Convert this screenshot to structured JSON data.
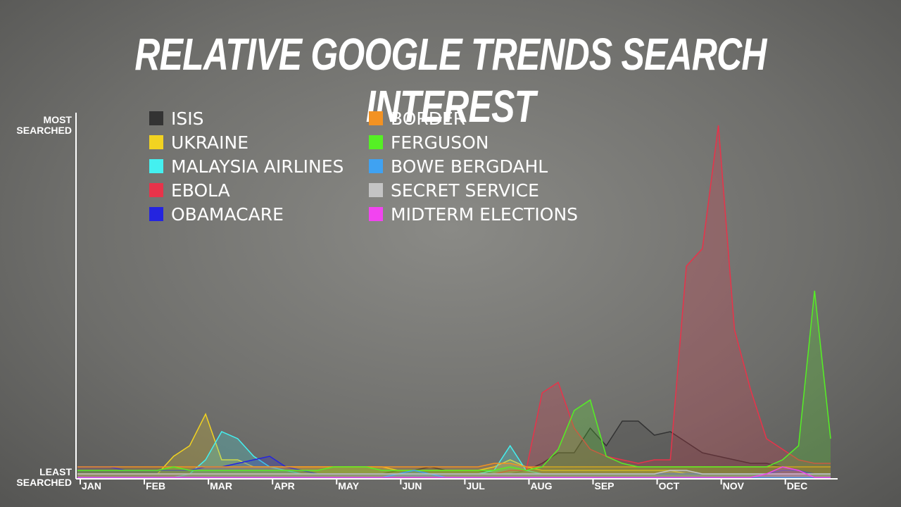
{
  "chart_data": {
    "type": "area",
    "title": "RELATIVE GOOGLE TRENDS SEARCH INTEREST",
    "categories": [
      "JAN",
      null,
      null,
      null,
      "FEB",
      null,
      null,
      null,
      "MAR",
      null,
      null,
      null,
      "APR",
      null,
      null,
      null,
      "MAY",
      null,
      null,
      null,
      "JUN",
      null,
      null,
      null,
      "JUL",
      null,
      null,
      null,
      "AUG",
      null,
      null,
      null,
      "SEP",
      null,
      null,
      null,
      "OCT",
      null,
      null,
      null,
      "NOV",
      null,
      null,
      null,
      "DEC",
      null,
      null,
      null
    ],
    "ylim": [
      0,
      100
    ],
    "yticks": [
      {
        "value": 0,
        "label": "LEAST SEARCHED"
      },
      {
        "value": 100,
        "label": "MOST SEARCHED"
      }
    ],
    "series": [
      {
        "name": "ISIS",
        "color": "#333333",
        "values": [
          1,
          1,
          1,
          1,
          1,
          1,
          1,
          1,
          1,
          1,
          1,
          1,
          1,
          1,
          1,
          1,
          1,
          1,
          1,
          1,
          2,
          2,
          3,
          2,
          2,
          2,
          1,
          1,
          2,
          4,
          7,
          7,
          14,
          9,
          16,
          16,
          12,
          13,
          10,
          7,
          6,
          5,
          4,
          4,
          3,
          3,
          3,
          3
        ]
      },
      {
        "name": "UKRAINE",
        "color": "#f2d321",
        "values": [
          1,
          1,
          1,
          1,
          1,
          1,
          6,
          9,
          18,
          5,
          5,
          3,
          3,
          3,
          3,
          3,
          3,
          3,
          3,
          3,
          2,
          2,
          2,
          2,
          2,
          2,
          3,
          5,
          3,
          2,
          2,
          2,
          2,
          2,
          2,
          2,
          2,
          2,
          1,
          1,
          1,
          1,
          1,
          1,
          1,
          1,
          1,
          1
        ]
      },
      {
        "name": "MALAYSIA AIRLINES",
        "color": "#44f0f0",
        "values": [
          0,
          0,
          0,
          0,
          0,
          0,
          0,
          1,
          5,
          13,
          11,
          6,
          3,
          2,
          1,
          1,
          1,
          1,
          1,
          1,
          1,
          1,
          1,
          1,
          1,
          1,
          2,
          9,
          2,
          1,
          1,
          1,
          1,
          1,
          1,
          1,
          1,
          1,
          1,
          1,
          1,
          1,
          1,
          1,
          1,
          1,
          1,
          1
        ]
      },
      {
        "name": "EBOLA",
        "color": "#e8334a",
        "values": [
          1,
          1,
          1,
          1,
          1,
          1,
          1,
          1,
          1,
          1,
          1,
          1,
          1,
          1,
          1,
          1,
          1,
          1,
          1,
          1,
          1,
          1,
          1,
          1,
          1,
          1,
          1,
          2,
          2,
          24,
          27,
          14,
          8,
          6,
          5,
          4,
          5,
          5,
          60,
          65,
          100,
          42,
          25,
          11,
          8,
          5,
          4,
          4
        ]
      },
      {
        "name": "OBAMACARE",
        "color": "#2424e0",
        "values": [
          3,
          3,
          3,
          2,
          2,
          2,
          2,
          2,
          3,
          3,
          4,
          5,
          6,
          3,
          2,
          1,
          1,
          1,
          1,
          1,
          1,
          1,
          1,
          1,
          1,
          1,
          1,
          1,
          1,
          1,
          1,
          1,
          1,
          1,
          1,
          1,
          1,
          1,
          1,
          1,
          1,
          1,
          1,
          1,
          2,
          2,
          1,
          1
        ]
      },
      {
        "name": "BORDER",
        "color": "#f39222",
        "values": [
          3,
          3,
          3,
          3,
          3,
          3,
          3,
          3,
          3,
          3,
          3,
          3,
          3,
          3,
          3,
          3,
          3,
          3,
          3,
          3,
          3,
          3,
          3,
          3,
          3,
          3,
          4,
          4,
          3,
          3,
          3,
          3,
          3,
          3,
          3,
          3,
          3,
          3,
          3,
          3,
          3,
          3,
          3,
          3,
          3,
          3,
          3,
          3
        ]
      },
      {
        "name": "FERGUSON",
        "color": "#55f024",
        "values": [
          2,
          2,
          2,
          2,
          2,
          2,
          3,
          2,
          2,
          2,
          2,
          2,
          2,
          2,
          2,
          2,
          3,
          3,
          3,
          2,
          2,
          2,
          2,
          2,
          2,
          2,
          2,
          3,
          2,
          3,
          8,
          19,
          22,
          6,
          4,
          3,
          3,
          3,
          3,
          3,
          3,
          3,
          3,
          3,
          5,
          9,
          53,
          11
        ]
      },
      {
        "name": "BOWE BERGDAHL",
        "color": "#3fa2f2",
        "values": [
          0,
          0,
          0,
          0,
          0,
          0,
          0,
          0,
          0,
          0,
          0,
          0,
          0,
          0,
          0,
          0,
          0,
          0,
          0,
          0,
          1,
          2,
          1,
          0,
          0,
          0,
          0,
          0,
          0,
          0,
          0,
          0,
          0,
          0,
          0,
          0,
          0,
          0,
          0,
          0,
          0,
          0,
          0,
          0,
          0,
          0,
          0,
          0
        ]
      },
      {
        "name": "SECRET SERVICE",
        "color": "#c4c4c4",
        "values": [
          1,
          1,
          1,
          1,
          1,
          1,
          1,
          1,
          1,
          1,
          1,
          1,
          1,
          1,
          1,
          1,
          1,
          1,
          1,
          1,
          1,
          1,
          1,
          1,
          1,
          1,
          1,
          1,
          1,
          1,
          1,
          1,
          1,
          1,
          1,
          1,
          1,
          2,
          2,
          1,
          1,
          1,
          1,
          1,
          1,
          1,
          1,
          1
        ]
      },
      {
        "name": "MIDTERM ELECTIONS",
        "color": "#f244f0",
        "values": [
          0,
          0,
          0,
          0,
          0,
          0,
          0,
          0,
          0,
          0,
          0,
          0,
          0,
          0,
          0,
          0,
          0,
          0,
          0,
          0,
          0,
          0,
          0,
          0,
          0,
          0,
          0,
          0,
          0,
          0,
          0,
          0,
          0,
          0,
          0,
          0,
          0,
          0,
          0,
          0,
          0,
          0,
          0,
          1,
          3,
          2,
          0,
          0
        ]
      }
    ]
  }
}
